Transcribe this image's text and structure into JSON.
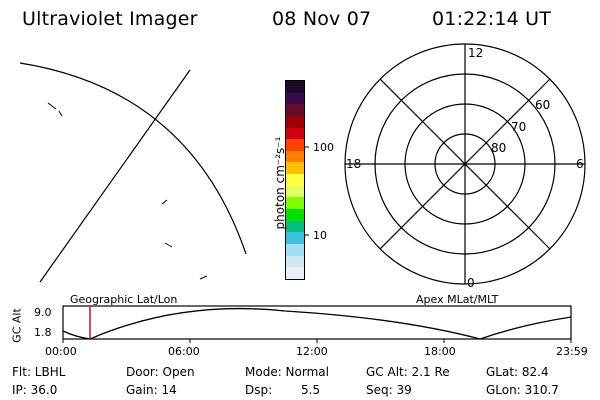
{
  "header": {
    "instrument": "Ultraviolet Imager",
    "date": "08 Nov 07",
    "time": "01:22:14 UT"
  },
  "colorbar": {
    "unit_label": "photon cm⁻²s⁻¹",
    "ticks": [
      "100",
      "10"
    ],
    "colors": [
      "#1b0b2a",
      "#3a0b4a",
      "#6a0a2a",
      "#a00000",
      "#d00010",
      "#ff4000",
      "#ff8000",
      "#ffc000",
      "#ffff40",
      "#e0ff60",
      "#80ff00",
      "#00e000",
      "#00c080",
      "#40c0e0",
      "#a0e0f0",
      "#d0e8f0",
      "#e8f0f4"
    ]
  },
  "polar_plot": {
    "mlt_labels": {
      "top": "12",
      "left": "18",
      "right": "6",
      "bottom": "0"
    },
    "lat_labels": [
      "80",
      "70",
      "60"
    ]
  },
  "timeline": {
    "y_axis_label": "GC Alt",
    "y_ticks": [
      "9.0",
      "1.8"
    ],
    "left_title": "Geographic Lat/Lon",
    "right_title": "Apex MLat/MLT",
    "x_ticks": [
      "00:00",
      "06:00",
      "12:00",
      "18:00",
      "23:59"
    ],
    "marker_color": "#d00000"
  },
  "status": {
    "filter": "Flt: LBHL",
    "ip": "IP: 36.0",
    "door": "Door: Open",
    "gain": "Gain: 14",
    "mode": "Mode: Normal",
    "dsp_label": "Dsp:",
    "dsp_value": "5.5",
    "gc_alt": "GC Alt: 2.1 Re",
    "seq": "Seq: 39",
    "glat": "GLat: 82.4",
    "glon": "GLon: 310.7"
  }
}
